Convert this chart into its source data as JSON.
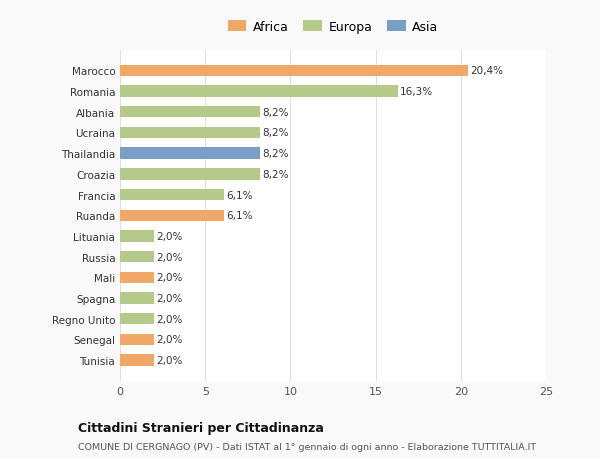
{
  "categories": [
    "Tunisia",
    "Senegal",
    "Regno Unito",
    "Spagna",
    "Mali",
    "Russia",
    "Lituania",
    "Ruanda",
    "Francia",
    "Croazia",
    "Thailandia",
    "Ucraina",
    "Albania",
    "Romania",
    "Marocco"
  ],
  "values": [
    2.0,
    2.0,
    2.0,
    2.0,
    2.0,
    2.0,
    2.0,
    6.1,
    6.1,
    8.2,
    8.2,
    8.2,
    8.2,
    16.3,
    20.4
  ],
  "colors": [
    "#f0a868",
    "#f0a868",
    "#b5c98a",
    "#b5c98a",
    "#f0a868",
    "#b5c98a",
    "#b5c98a",
    "#f0a868",
    "#b5c98a",
    "#b5c98a",
    "#7b9fc4",
    "#b5c98a",
    "#b5c98a",
    "#b5c98a",
    "#f0a868"
  ],
  "labels": [
    "2,0%",
    "2,0%",
    "2,0%",
    "2,0%",
    "2,0%",
    "2,0%",
    "2,0%",
    "6,1%",
    "6,1%",
    "8,2%",
    "8,2%",
    "8,2%",
    "8,2%",
    "16,3%",
    "20,4%"
  ],
  "title1": "Cittadini Stranieri per Cittadinanza",
  "title2": "COMUNE DI CERGNAGO (PV) - Dati ISTAT al 1° gennaio di ogni anno - Elaborazione TUTTITALIA.IT",
  "legend_labels": [
    "Africa",
    "Europa",
    "Asia"
  ],
  "legend_colors": [
    "#f0a868",
    "#b5c98a",
    "#7b9fc4"
  ],
  "xlim": [
    0,
    25
  ],
  "xticks": [
    0,
    5,
    10,
    15,
    20,
    25
  ],
  "bg_color": "#f9f9f9",
  "bar_bg_color": "#ffffff",
  "grid_color": "#e0e0e0"
}
